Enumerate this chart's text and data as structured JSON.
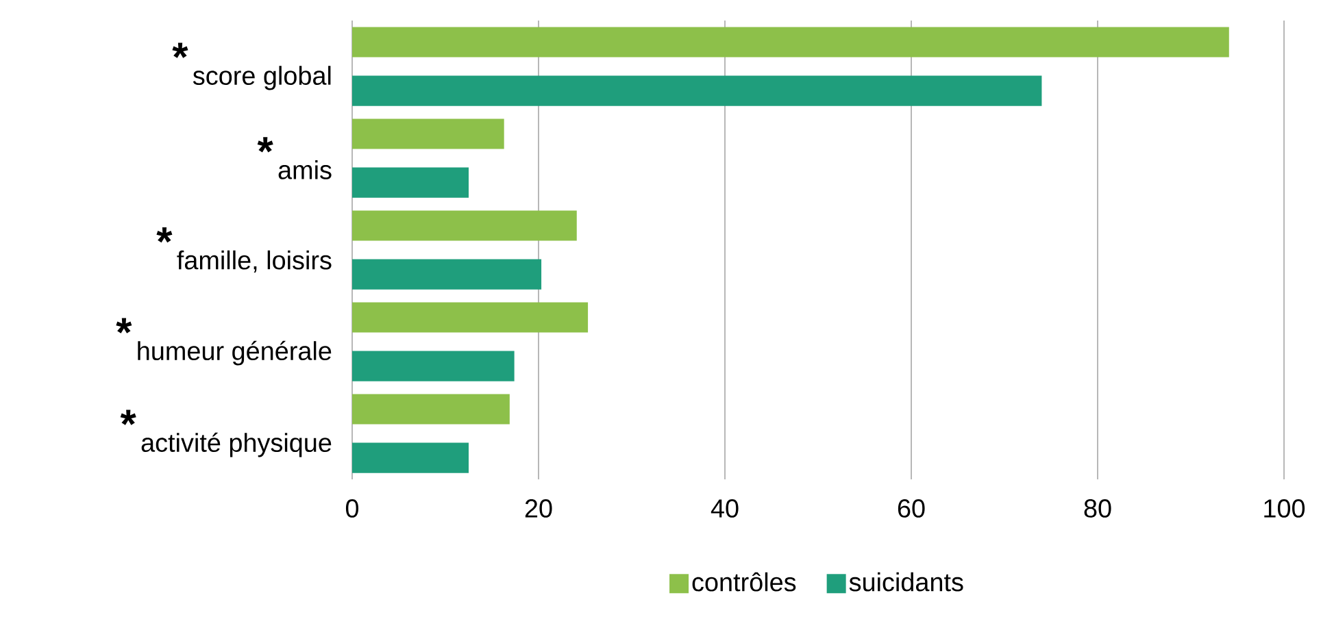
{
  "chart_data": {
    "type": "bar",
    "orientation": "horizontal",
    "categories": [
      "score global",
      "amis",
      "famille, loisirs",
      "humeur générale",
      "activité physique"
    ],
    "series": [
      {
        "name": "contrôles",
        "color": "#8dc04a",
        "values": [
          94.1,
          16.3,
          24.1,
          25.3,
          16.9
        ]
      },
      {
        "name": "suicidants",
        "color": "#1f9e7c",
        "values": [
          74.0,
          12.5,
          20.3,
          17.4,
          12.5
        ]
      }
    ],
    "xlim": [
      0,
      100
    ],
    "xticks": [
      0,
      20,
      40,
      60,
      80,
      100
    ],
    "grid": "x",
    "legend": "bottom",
    "annotations": [
      "*",
      "*",
      "*",
      "*",
      "*"
    ]
  }
}
